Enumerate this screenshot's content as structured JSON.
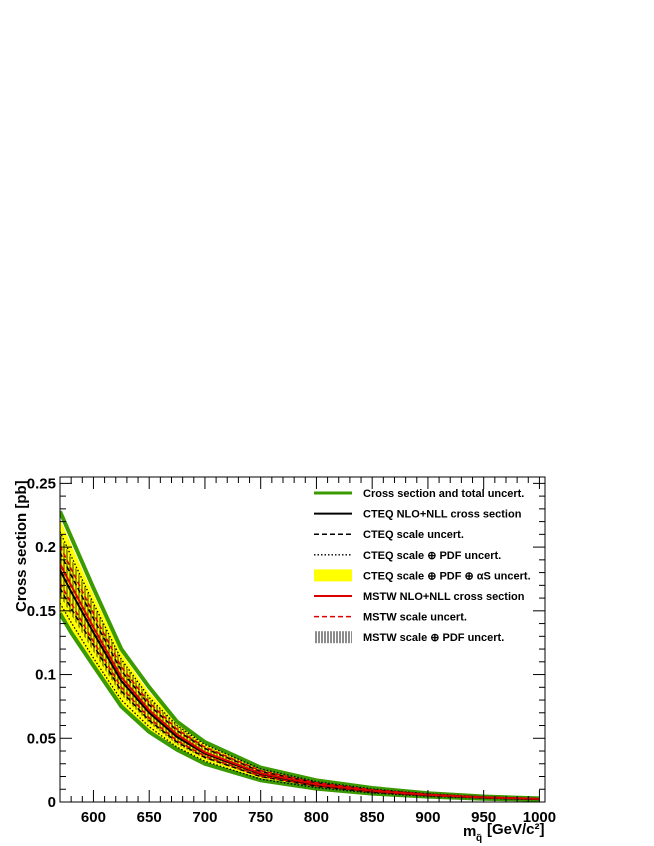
{
  "chart_data": {
    "type": "line",
    "xlabel": "m",
    "xlabel_sub": "q̃",
    "xlabel_unit": "[GeV/c²]",
    "ylabel": "Cross section [pb]",
    "xlim": [
      570,
      1005
    ],
    "ylim": [
      0,
      0.255
    ],
    "grid": false,
    "legend_position": "top-right",
    "x": [
      570,
      580,
      600,
      625,
      650,
      675,
      700,
      750,
      800,
      850,
      900,
      950,
      1000
    ],
    "x_ticks": [
      {
        "v": 600,
        "label": "600"
      },
      {
        "v": 650,
        "label": "650"
      },
      {
        "v": 700,
        "label": "700"
      },
      {
        "v": 750,
        "label": "750"
      },
      {
        "v": 800,
        "label": "800"
      },
      {
        "v": 850,
        "label": "850"
      },
      {
        "v": 900,
        "label": "900"
      },
      {
        "v": 950,
        "label": "950"
      },
      {
        "v": 1000,
        "label": "1000"
      }
    ],
    "y_ticks": [
      {
        "v": 0,
        "label": "0"
      },
      {
        "v": 0.05,
        "label": "0.05"
      },
      {
        "v": 0.1,
        "label": "0.1"
      },
      {
        "v": 0.15,
        "label": "0.15"
      },
      {
        "v": 0.2,
        "label": "0.2"
      },
      {
        "v": 0.25,
        "label": "0.25"
      }
    ],
    "series": [
      {
        "name": "Cross section and total uncert.",
        "style": "band-edge-thick",
        "color": "#3a9a00",
        "upper": [
          0.228,
          0.208,
          0.168,
          0.12,
          0.09,
          0.063,
          0.047,
          0.027,
          0.017,
          0.011,
          0.0068,
          0.0043,
          0.0028
        ],
        "lower": [
          0.148,
          0.133,
          0.107,
          0.075,
          0.055,
          0.041,
          0.03,
          0.017,
          0.0105,
          0.0066,
          0.0042,
          0.0026,
          0.0017
        ]
      },
      {
        "name": "CTEQ NLO+NLL cross section",
        "style": "solid",
        "color": "#000000",
        "values": [
          0.182,
          0.165,
          0.133,
          0.095,
          0.07,
          0.051,
          0.038,
          0.022,
          0.0135,
          0.0086,
          0.0055,
          0.0035,
          0.0023
        ]
      },
      {
        "name": "CTEQ scale uncert.",
        "style": "dashed",
        "color": "#000000",
        "upper": [
          0.196,
          0.178,
          0.144,
          0.103,
          0.076,
          0.056,
          0.042,
          0.024,
          0.015,
          0.0094,
          0.006,
          0.0038,
          0.0025
        ],
        "lower": [
          0.168,
          0.152,
          0.123,
          0.087,
          0.064,
          0.047,
          0.035,
          0.02,
          0.0123,
          0.0078,
          0.005,
          0.0032,
          0.0021
        ]
      },
      {
        "name": "CTEQ scale ⊕ PDF uncert.",
        "style": "dotted",
        "color": "#000000",
        "upper": [
          0.212,
          0.193,
          0.156,
          0.112,
          0.082,
          0.06,
          0.045,
          0.026,
          0.016,
          0.0102,
          0.0065,
          0.0041,
          0.0027
        ],
        "lower": [
          0.156,
          0.141,
          0.113,
          0.08,
          0.059,
          0.043,
          0.032,
          0.018,
          0.0112,
          0.0071,
          0.0045,
          0.0029,
          0.0019
        ]
      },
      {
        "name": "CTEQ scale ⊕ PDF ⊕ αs uncert.",
        "style": "band",
        "color": "#ffff00",
        "upper": [
          0.222,
          0.202,
          0.163,
          0.117,
          0.086,
          0.063,
          0.047,
          0.027,
          0.017,
          0.0106,
          0.0067,
          0.0042,
          0.0028
        ],
        "lower": [
          0.15,
          0.135,
          0.109,
          0.077,
          0.056,
          0.041,
          0.031,
          0.0175,
          0.0108,
          0.0068,
          0.0043,
          0.0027,
          0.0018
        ]
      },
      {
        "name": "MSTW NLO+NLL cross section",
        "style": "solid",
        "color": "#dd0000",
        "values": [
          0.187,
          0.17,
          0.137,
          0.098,
          0.072,
          0.053,
          0.039,
          0.0225,
          0.0138,
          0.0088,
          0.0056,
          0.0036,
          0.0024
        ]
      },
      {
        "name": "MSTW scale uncert.",
        "style": "dashed",
        "color": "#dd0000",
        "upper": [
          0.201,
          0.183,
          0.148,
          0.106,
          0.078,
          0.057,
          0.043,
          0.0245,
          0.0151,
          0.0096,
          0.0061,
          0.0039,
          0.0026
        ],
        "lower": [
          0.172,
          0.156,
          0.126,
          0.09,
          0.066,
          0.048,
          0.036,
          0.0205,
          0.0126,
          0.008,
          0.0051,
          0.0033,
          0.0022
        ]
      },
      {
        "name": "MSTW scale ⊕ PDF uncert.",
        "style": "hatched",
        "color": "#000000",
        "upper": [
          0.21,
          0.191,
          0.155,
          0.111,
          0.081,
          0.06,
          0.044,
          0.0255,
          0.0158,
          0.01,
          0.0064,
          0.004,
          0.0027
        ],
        "lower": [
          0.162,
          0.147,
          0.118,
          0.084,
          0.062,
          0.045,
          0.034,
          0.0192,
          0.0118,
          0.0075,
          0.0048,
          0.003,
          0.002
        ]
      }
    ],
    "legend": [
      {
        "label": "Cross section and total uncert.",
        "symbol": "thick-green"
      },
      {
        "label": "CTEQ NLO+NLL cross section",
        "symbol": "solid-black"
      },
      {
        "label": "CTEQ scale uncert.",
        "symbol": "dashed-black"
      },
      {
        "label": "CTEQ scale ⊕ PDF uncert.",
        "symbol": "dotted-black"
      },
      {
        "label": "CTEQ scale ⊕ PDF ⊕ αS uncert.",
        "symbol": "yellow-box"
      },
      {
        "label": "MSTW NLO+NLL cross section",
        "symbol": "solid-red"
      },
      {
        "label": "MSTW scale uncert.",
        "symbol": "dashed-red"
      },
      {
        "label": "MSTW scale ⊕ PDF uncert.",
        "symbol": "hatch-box"
      }
    ]
  }
}
